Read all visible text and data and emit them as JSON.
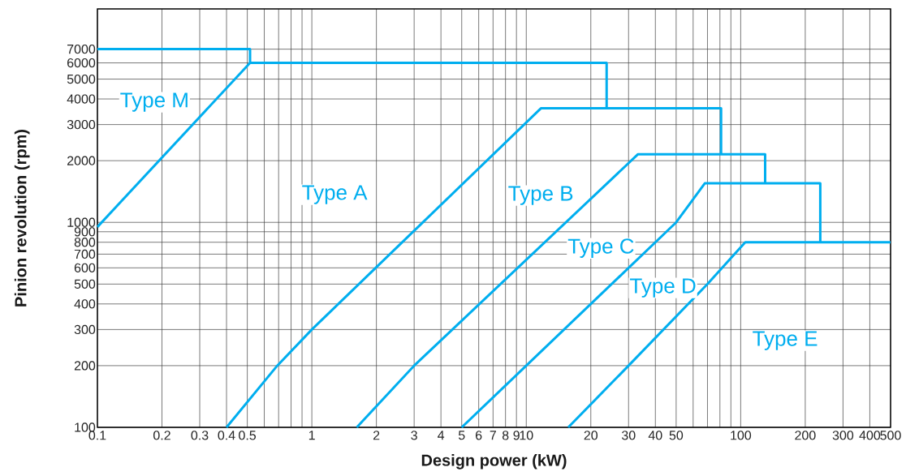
{
  "chart_data": {
    "type": "line",
    "xlabel": "Design power (kW)",
    "ylabel": "Pinion revolution (rpm)",
    "log": "xy",
    "grid": true,
    "xlim": [
      0.1,
      500
    ],
    "ylim": [
      100,
      11000
    ],
    "xticks": [
      0.1,
      0.2,
      0.3,
      0.4,
      0.5,
      {
        "value": 0.6,
        "label": null
      },
      {
        "value": 0.7,
        "label": null
      },
      {
        "value": 0.8,
        "label": null
      },
      {
        "value": 0.9,
        "label": null
      },
      1,
      2,
      3,
      4,
      5,
      6,
      7,
      8,
      9,
      10,
      20,
      30,
      40,
      50,
      {
        "value": 60,
        "label": null
      },
      {
        "value": 70,
        "label": null
      },
      {
        "value": 80,
        "label": null
      },
      {
        "value": 90,
        "label": null
      },
      100,
      200,
      300,
      400,
      500
    ],
    "yticks": [
      100,
      200,
      300,
      400,
      500,
      600,
      700,
      800,
      900,
      1000,
      2000,
      3000,
      4000,
      5000,
      6000,
      7000
    ],
    "series": [
      {
        "color": "#00aeef",
        "x": [
          0.1,
          0.515
        ],
        "values": [
          950,
          6000
        ]
      },
      {
        "color": "#00aeef",
        "x": [
          0.1,
          0.515,
          0.515,
          23.7,
          23.7
        ],
        "values": [
          7000,
          7000,
          6000,
          6000,
          3600
        ]
      },
      {
        "color": "#00aeef",
        "x": [
          0.4,
          0.69,
          1,
          11.7,
          81,
          81
        ],
        "values": [
          100,
          200,
          300,
          3600,
          3600,
          2150
        ]
      },
      {
        "color": "#00aeef",
        "x": [
          1.62,
          3,
          33.2,
          130,
          130
        ],
        "values": [
          100,
          200,
          2150,
          2150,
          1550
        ]
      },
      {
        "color": "#00aeef",
        "x": [
          5,
          10,
          15,
          50,
          68,
          235,
          235
        ],
        "values": [
          100,
          200,
          300,
          1000,
          1550,
          1550,
          800
        ]
      },
      {
        "color": "#00aeef",
        "x": [
          15.7,
          30,
          70,
          105,
          500
        ],
        "values": [
          100,
          200,
          500,
          800,
          800
        ]
      }
    ],
    "annotations": [
      "Type M",
      "Type A",
      "Type B",
      "Type C",
      "Type D",
      "Type E"
    ]
  }
}
